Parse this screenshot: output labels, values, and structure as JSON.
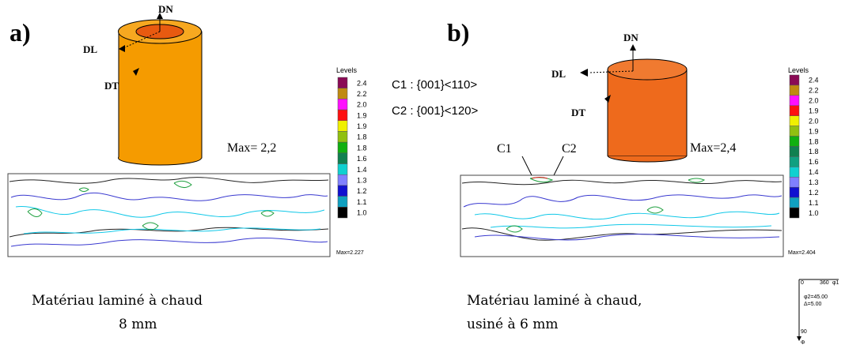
{
  "panels": [
    {
      "tag": "a)",
      "axes": {
        "dn": "DN",
        "dl": "DL",
        "dt": "DT"
      },
      "max_note": "Max= 2,2",
      "legend": {
        "title": "Levels",
        "max": "Max=2.227",
        "levels": [
          {
            "label": "2.4",
            "color": "#8a0a55"
          },
          {
            "label": "2.2",
            "color": "#c08a10"
          },
          {
            "label": "2.0",
            "color": "#ff10ff"
          },
          {
            "label": "1.9",
            "color": "#ff1010"
          },
          {
            "label": "1.9",
            "color": "#f0f000"
          },
          {
            "label": "1.8",
            "color": "#90c010"
          },
          {
            "label": "1.8",
            "color": "#10b010"
          },
          {
            "label": "1.6",
            "color": "#108050"
          },
          {
            "label": "1.4",
            "color": "#10d0d0"
          },
          {
            "label": "1.3",
            "color": "#8080ff"
          },
          {
            "label": "1.2",
            "color": "#1010d0"
          },
          {
            "label": "1.1",
            "color": "#10a0c0"
          },
          {
            "label": "1.0",
            "color": "#000000"
          }
        ]
      },
      "caption": [
        "Matériau laminé à chaud",
        "8 mm"
      ]
    },
    {
      "tag": "b)",
      "axes": {
        "dn": "DN",
        "dl": "DL",
        "dt": "DT"
      },
      "annotations": [
        "C1 : {001}<110>",
        "C2 : {001}<120>"
      ],
      "max_note": "Max=2,4",
      "peak_labels": [
        "C1",
        "C2"
      ],
      "legend": {
        "title": "Levels",
        "max": "Max=2.404",
        "levels": [
          {
            "label": "2.4",
            "color": "#8a0a55"
          },
          {
            "label": "2.2",
            "color": "#c08a10"
          },
          {
            "label": "2.0",
            "color": "#ff10ff"
          },
          {
            "label": "1.9",
            "color": "#ff1010"
          },
          {
            "label": "2.0",
            "color": "#f0f000"
          },
          {
            "label": "1.9",
            "color": "#90c010"
          },
          {
            "label": "1.8",
            "color": "#10b010"
          },
          {
            "label": "1.8",
            "color": "#108050"
          },
          {
            "label": "1.6",
            "color": "#10a080"
          },
          {
            "label": "1.4",
            "color": "#10d0d0"
          },
          {
            "label": "1.3",
            "color": "#8080ff"
          },
          {
            "label": "1.2",
            "color": "#1010d0"
          },
          {
            "label": "1.1",
            "color": "#10a0c0"
          },
          {
            "label": "1.0",
            "color": "#000000"
          }
        ]
      },
      "caption": [
        "Matériau laminé à chaud,",
        "usiné à 6 mm"
      ]
    }
  ],
  "axis_key": {
    "start": "0",
    "end": "360",
    "x_axis": "φ1",
    "phi2": "φ2=45.00",
    "delta": "Δ=5.00",
    "y_end": "90",
    "y_axis": "Φ"
  }
}
